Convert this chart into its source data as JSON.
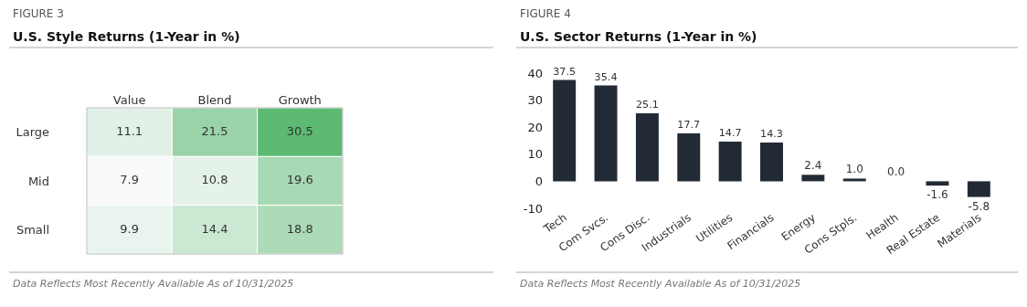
{
  "chart_data": [
    {
      "type": "heatmap",
      "subtitle": "FIGURE 3",
      "title": "U.S. Style Returns (1-Year in %)",
      "categories": [
        "Value",
        "Blend",
        "Growth"
      ],
      "y_categories": [
        "Large",
        "Mid",
        "Small"
      ],
      "cells": [
        [
          11.1,
          21.5,
          30.5
        ],
        [
          7.9,
          10.8,
          19.6
        ],
        [
          9.9,
          14.4,
          18.8
        ]
      ],
      "data_labels": true,
      "annotations": [
        "Data Reflects Most Recently Available As of 10/31/2025"
      ]
    },
    {
      "type": "bar",
      "subtitle": "FIGURE 4",
      "title": "U.S. Sector Returns (1-Year in %)",
      "categories": [
        "Tech",
        "Com Svcs.",
        "Cons Disc.",
        "Industrials",
        "Utilities",
        "Financials",
        "Energy",
        "Cons Stpls.",
        "Health",
        "Real Estate",
        "Materials"
      ],
      "values": [
        37.5,
        35.4,
        25.1,
        17.7,
        14.7,
        14.3,
        2.4,
        1.0,
        0.0,
        -1.6,
        -5.8
      ],
      "value_labels": [
        "37.5",
        "35.4",
        "25.1",
        "17.7",
        "14.7",
        "14.3",
        "2.4",
        "1.0",
        "0.0",
        "-1.6",
        "-5.8"
      ],
      "color": "#222a35",
      "ylim": [
        -10,
        40
      ],
      "yticks": [
        -10,
        0,
        10,
        20,
        30,
        40
      ],
      "grid": false,
      "annotations": [
        "Data Reflects Most Recently Available As of 10/31/2025"
      ]
    }
  ]
}
